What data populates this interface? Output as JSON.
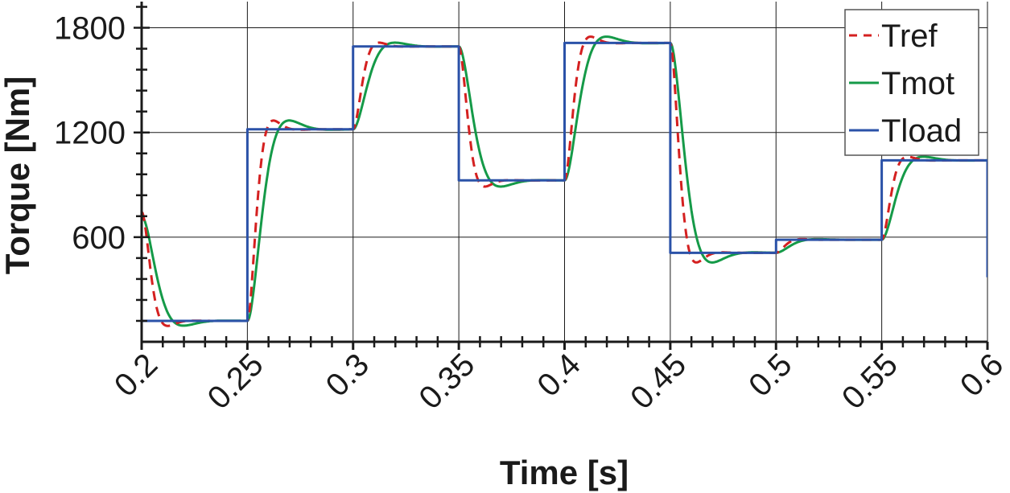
{
  "chart_data": {
    "type": "line",
    "xlabel": "Time [s]",
    "ylabel": "Torque [Nm]",
    "xlim": [
      0.2,
      0.6
    ],
    "ylim": [
      0,
      1950
    ],
    "xticks": [
      "0.2",
      "0.25",
      "0.3",
      "0.35",
      "0.4",
      "0.45",
      "0.5",
      "0.55",
      "0.6"
    ],
    "xtick_values": [
      0.2,
      0.25,
      0.3,
      0.35,
      0.4,
      0.45,
      0.5,
      0.55,
      0.6
    ],
    "yticks": [
      "600",
      "1200",
      "1800"
    ],
    "ytick_values": [
      600,
      1200,
      1800
    ],
    "grid": true,
    "legend_position": "top-right",
    "series": [
      {
        "name": "Tref",
        "color": "#d42020",
        "style": "dashed",
        "steps": [
          [
            0.2,
            745,
            120
          ],
          [
            0.25,
            120,
            1218
          ],
          [
            0.3,
            1218,
            1693
          ],
          [
            0.35,
            1693,
            925
          ],
          [
            0.4,
            925,
            1713
          ],
          [
            0.45,
            1713,
            510
          ],
          [
            0.5,
            510,
            585
          ],
          [
            0.55,
            585,
            1040
          ]
        ],
        "tau": 0.0028
      },
      {
        "name": "Tmot",
        "color": "#159a48",
        "style": "solid",
        "steps": [
          [
            0.2,
            720,
            120
          ],
          [
            0.25,
            120,
            1218
          ],
          [
            0.3,
            1218,
            1693
          ],
          [
            0.35,
            1693,
            925
          ],
          [
            0.4,
            925,
            1713
          ],
          [
            0.45,
            1713,
            510
          ],
          [
            0.5,
            510,
            585
          ],
          [
            0.55,
            585,
            1040
          ]
        ],
        "tau": 0.0045
      },
      {
        "name": "Tload",
        "color": "#2b52a8",
        "style": "solid",
        "x": [
          0.2,
          0.25,
          0.25,
          0.3,
          0.3,
          0.35,
          0.35,
          0.4,
          0.4,
          0.45,
          0.45,
          0.5,
          0.5,
          0.55,
          0.55,
          0.6,
          0.6
        ],
        "y": [
          120,
          120,
          1218,
          1218,
          1693,
          1693,
          925,
          925,
          1713,
          1713,
          510,
          510,
          585,
          585,
          1040,
          1040,
          370
        ]
      }
    ]
  }
}
